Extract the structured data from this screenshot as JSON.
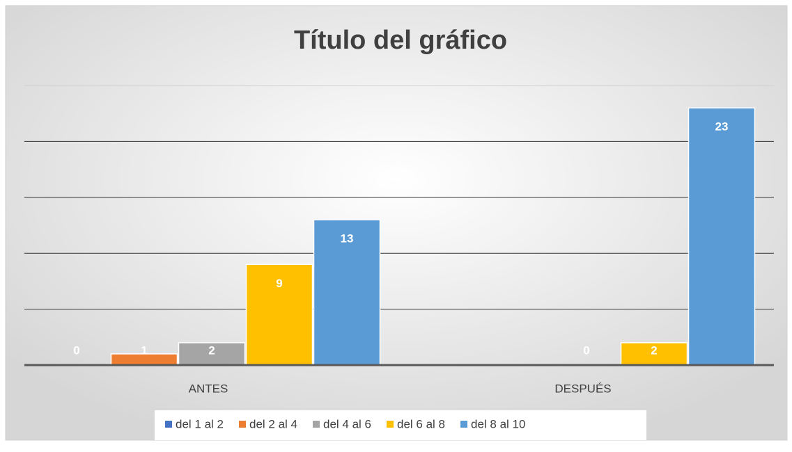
{
  "chart_data": {
    "type": "bar",
    "title": "Título del gráfico",
    "categories": [
      "ANTES",
      "DESPUÉS"
    ],
    "series": [
      {
        "name": "del 1 al 2",
        "color": "#4472c4",
        "values": [
          0,
          null
        ]
      },
      {
        "name": "del 2 al 4",
        "color": "#ed7d31",
        "values": [
          1,
          null
        ]
      },
      {
        "name": "del 4 al 6",
        "color": "#a5a5a5",
        "values": [
          2,
          0
        ]
      },
      {
        "name": "del 6 al 8",
        "color": "#ffc000",
        "values": [
          9,
          2
        ]
      },
      {
        "name": "del 8 al 10",
        "color": "#5b9bd5",
        "values": [
          13,
          23
        ]
      }
    ],
    "ylim": [
      0,
      25
    ],
    "yticks": [
      0,
      5,
      10,
      15,
      20,
      25
    ],
    "grid": true,
    "legend": "bottom"
  }
}
